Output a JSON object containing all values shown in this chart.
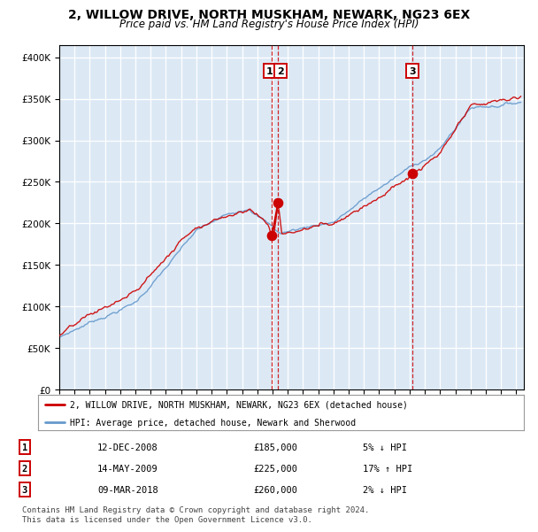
{
  "title": "2, WILLOW DRIVE, NORTH MUSKHAM, NEWARK, NG23 6EX",
  "subtitle": "Price paid vs. HM Land Registry's House Price Index (HPI)",
  "title_fontsize": 10,
  "subtitle_fontsize": 8.5,
  "red_line_label": "2, WILLOW DRIVE, NORTH MUSKHAM, NEWARK, NG23 6EX (detached house)",
  "blue_line_label": "HPI: Average price, detached house, Newark and Sherwood",
  "transactions": [
    {
      "label": "1",
      "date": "12-DEC-2008",
      "price": "£185,000",
      "pct": "5%",
      "dir": "↓",
      "x_year": 2008.96,
      "y_val": 185000
    },
    {
      "label": "2",
      "date": "14-MAY-2009",
      "price": "£225,000",
      "pct": "17%",
      "dir": "↑",
      "x_year": 2009.37,
      "y_val": 225000
    },
    {
      "label": "3",
      "date": "09-MAR-2018",
      "price": "£260,000",
      "pct": "2%",
      "dir": "↓",
      "x_year": 2018.18,
      "y_val": 260000
    }
  ],
  "yticks": [
    0,
    50000,
    100000,
    150000,
    200000,
    250000,
    300000,
    350000,
    400000
  ],
  "xmin": 1995.0,
  "xmax": 2025.5,
  "ymin": 0,
  "ymax": 415000,
  "plot_bg": "#dce9f5",
  "grid_color": "#ffffff",
  "red_color": "#cc0000",
  "blue_color": "#6699cc",
  "footer_text": "Contains HM Land Registry data © Crown copyright and database right 2024.\nThis data is licensed under the Open Government Licence v3.0.",
  "footer_fontsize": 6.5
}
